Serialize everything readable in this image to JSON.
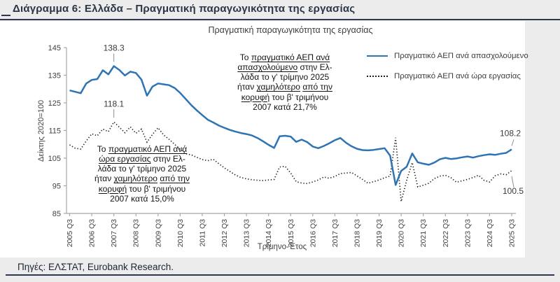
{
  "header": {
    "title": "Διάγραμμα 6: Ελλάδα – Πραγματική παραγωγικότητα της εργασίας"
  },
  "footer": {
    "source": "Πηγές: ΕΛΣΤΑΤ, Eurobank Research."
  },
  "colors": {
    "accent_blue": "#2e74b5",
    "dotted_black": "#1f1f1f",
    "rule_navy": "#2e3950"
  },
  "chart_data": {
    "type": "line",
    "title": "Πραγματική παραγωγικότητα της εργασίας",
    "xlabel": "Τρίμηνο-Έτος",
    "ylabel": "Δείκτης 2020=100",
    "ylim": [
      85,
      145
    ],
    "yticks": [
      145,
      135,
      125,
      115,
      105,
      95,
      85
    ],
    "grid": false,
    "legend_position": "top-right",
    "x_frequency": "quarterly",
    "x_range": [
      "2005 Q3",
      "2025 Q3"
    ],
    "x_tick_labels": [
      "2005 Q3",
      "2006 Q3",
      "2007 Q3",
      "2008 Q3",
      "2009 Q3",
      "2010 Q3",
      "2011 Q3",
      "2012 Q3",
      "2013 Q3",
      "2014 Q3",
      "2015 Q3",
      "2016 Q3",
      "2017 Q3",
      "2018 Q3",
      "2019 Q3",
      "2020 Q3",
      "2021 Q3",
      "2022 Q3",
      "2023 Q3",
      "2024 Q3",
      "2025 Q3"
    ],
    "series": [
      {
        "name": "Πραγματικό ΑΕΠ ανά απασχολούμενο",
        "line_style": "solid",
        "color": "#2e74b5",
        "values": [
          129.5,
          129.0,
          128.5,
          132.0,
          133.3,
          133.6,
          136.8,
          135.3,
          138.3,
          136.9,
          134.9,
          136.3,
          135.8,
          133.4,
          127.6,
          130.9,
          132.0,
          131.7,
          131.4,
          130.4,
          128.6,
          126.4,
          124.2,
          122.3,
          120.6,
          118.9,
          117.9,
          116.8,
          116.0,
          115.2,
          114.6,
          114.1,
          113.7,
          113.2,
          112.3,
          111.1,
          109.8,
          108.7,
          112.9,
          113.1,
          112.8,
          110.9,
          111.7,
          110.8,
          109.2,
          108.6,
          109.4,
          110.4,
          111.5,
          112.3,
          110.6,
          109.3,
          108.4,
          107.9,
          107.8,
          108.0,
          108.3,
          108.6,
          105.9,
          95.3,
          100.4,
          101.9,
          106.7,
          103.5,
          103.0,
          102.6,
          103.4,
          104.6,
          105.1,
          104.7,
          104.9,
          105.3,
          105.6,
          105.2,
          105.7,
          106.1,
          106.4,
          106.2,
          106.6,
          106.9,
          108.2
        ]
      },
      {
        "name": "Πραγματικό ΑΕΠ ανά ώρα εργασίας",
        "line_style": "dotted",
        "color": "#1f1f1f",
        "values": [
          109.8,
          108.6,
          108.3,
          111.2,
          113.8,
          113.1,
          115.5,
          114.6,
          118.1,
          116.2,
          114.2,
          116.3,
          114.0,
          115.5,
          110.8,
          113.6,
          116.0,
          113.4,
          111.8,
          110.0,
          108.2,
          106.6,
          106.2,
          105.3,
          104.5,
          104.1,
          104.6,
          103.0,
          101.5,
          100.2,
          98.9,
          98.0,
          97.5,
          97.2,
          97.0,
          96.9,
          97.1,
          97.3,
          101.8,
          102.0,
          99.6,
          96.5,
          96.0,
          95.8,
          96.4,
          97.1,
          98.2,
          97.7,
          98.4,
          99.4,
          99.6,
          99.8,
          98.6,
          97.3,
          95.9,
          96.5,
          97.1,
          97.9,
          98.5,
          112.4,
          89.3,
          97.0,
          103.4,
          94.6,
          95.2,
          95.9,
          97.6,
          98.5,
          98.8,
          97.9,
          96.3,
          96.8,
          97.3,
          98.0,
          98.8,
          97.0,
          96.4,
          98.6,
          99.3,
          99.0,
          100.5
        ]
      }
    ],
    "point_labels": [
      {
        "text": "138.3",
        "series": 0,
        "index": 8,
        "placement": "above"
      },
      {
        "text": "118.1",
        "series": 1,
        "index": 8,
        "placement": "above"
      },
      {
        "text": "108.2",
        "series": 0,
        "index": 80,
        "placement": "end-above"
      },
      {
        "text": "100.5",
        "series": 1,
        "index": 80,
        "placement": "end-below"
      }
    ],
    "annotations": [
      {
        "id": "per-employee",
        "lines": [
          [
            {
              "t": "Το ",
              "u": false
            },
            {
              "t": "πραγματικό ΑΕΠ ανά",
              "u": true
            }
          ],
          [
            {
              "t": "απασχολούμενο",
              "u": true
            },
            {
              "t": " στην Ελ-",
              "u": false
            }
          ],
          [
            {
              "t": "λάδα το γ' τρίμηνο 2025",
              "u": false
            }
          ],
          [
            {
              "t": "ήταν ",
              "u": false
            },
            {
              "t": "χαμηλότερο",
              "u": true
            },
            {
              "t": " ",
              "u": false
            },
            {
              "t": "από την",
              "u": true
            }
          ],
          [
            {
              "t": "κορυφή",
              "u": true
            },
            {
              "t": " του β' τριμήνου",
              "u": false
            }
          ],
          [
            {
              "t": "2007 κατά 21,7%",
              "u": false
            }
          ]
        ]
      },
      {
        "id": "per-hour",
        "lines": [
          [
            {
              "t": "Το ",
              "u": false
            },
            {
              "t": "πραγματικό ΑΕΠ ανά",
              "u": true
            }
          ],
          [
            {
              "t": "ώρα εργασίας",
              "u": true
            },
            {
              "t": " στην Ελ-",
              "u": false
            }
          ],
          [
            {
              "t": "λάδα το γ' τρίμηνο 2025",
              "u": false
            }
          ],
          [
            {
              "t": "ήταν ",
              "u": false
            },
            {
              "t": "χαμηλότερο",
              "u": true
            },
            {
              "t": " ",
              "u": false
            },
            {
              "t": "από την",
              "u": true
            }
          ],
          [
            {
              "t": "κορυφή",
              "u": true
            },
            {
              "t": " του β' τριμήνου",
              "u": false
            }
          ],
          [
            {
              "t": "2007 κατά 15,0%",
              "u": false
            }
          ]
        ]
      }
    ]
  }
}
